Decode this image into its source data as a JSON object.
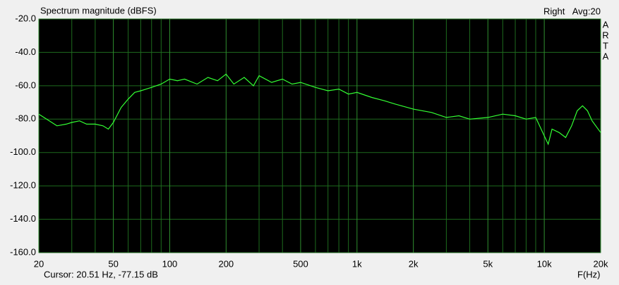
{
  "chart_data": {
    "type": "line",
    "title": "Spectrum magnitude (dBFS)",
    "channel": "Right",
    "averaging": "Avg:20",
    "side_label": [
      "A",
      "R",
      "T",
      "A"
    ],
    "cursor": "Cursor: 20.51 Hz, -77.15 dB",
    "x_label": "F(Hz)",
    "x_log": true,
    "grid": true,
    "xlim": [
      20,
      20000
    ],
    "xticks": [
      20,
      50,
      100,
      200,
      500,
      {
        "value": 1000,
        "label": "1k"
      },
      {
        "value": 2000,
        "label": "2k"
      },
      {
        "value": 5000,
        "label": "5k"
      },
      {
        "value": 10000,
        "label": "10k"
      },
      {
        "value": 20000,
        "label": "20k"
      }
    ],
    "xminor": [
      30,
      40,
      60,
      70,
      80,
      90,
      300,
      400,
      600,
      700,
      800,
      900,
      3000,
      4000,
      6000,
      7000,
      8000,
      9000
    ],
    "ylim": [
      -160,
      -20
    ],
    "yticks": [
      {
        "value": -160,
        "label": "-160.0"
      },
      {
        "value": -140,
        "label": "-140.0"
      },
      {
        "value": -120,
        "label": "-120.0"
      },
      {
        "value": -100,
        "label": "-100.0"
      },
      {
        "value": -80,
        "label": "-80.0"
      },
      {
        "value": -60,
        "label": "-60.0"
      },
      {
        "value": -40,
        "label": "-40.0"
      },
      {
        "value": -20,
        "label": "-20.0"
      }
    ],
    "series": [
      {
        "color": "#33ff33",
        "x": [
          20,
          22,
          25,
          28,
          30,
          33,
          36,
          40,
          44,
          47,
          50,
          55,
          60,
          65,
          70,
          80,
          90,
          100,
          110,
          120,
          140,
          160,
          180,
          200,
          220,
          250,
          280,
          300,
          350,
          400,
          450,
          500,
          600,
          700,
          800,
          900,
          1000,
          1200,
          1400,
          1600,
          2000,
          2500,
          3000,
          3500,
          4000,
          5000,
          6000,
          7000,
          8000,
          9000,
          10000,
          10500,
          11000,
          12000,
          13000,
          14000,
          15000,
          16000,
          17000,
          18000,
          20000
        ],
        "values": [
          -77,
          -80,
          -84,
          -83,
          -82,
          -81,
          -83,
          -83,
          -84,
          -86,
          -82,
          -73,
          -68,
          -64,
          -63,
          -61,
          -59,
          -56,
          -57,
          -56,
          -59,
          -55,
          -57,
          -53,
          -59,
          -55,
          -60,
          -54,
          -58,
          -56,
          -59,
          -58,
          -61,
          -63,
          -62,
          -65,
          -64,
          -67,
          -69,
          -71,
          -74,
          -76,
          -79,
          -78,
          -80,
          -79,
          -77,
          -78,
          -80,
          -79,
          -90,
          -95,
          -86,
          -88,
          -91,
          -84,
          -75,
          -72,
          -75,
          -81,
          -88
        ]
      }
    ]
  }
}
